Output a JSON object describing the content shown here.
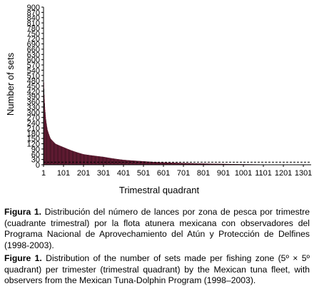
{
  "chart_data": {
    "type": "bar",
    "title": "",
    "xlabel": "Trimestral quadrant",
    "ylabel": "Number of sets",
    "ylim": [
      0,
      900
    ],
    "y_ticks": [
      0,
      30,
      60,
      90,
      120,
      150,
      180,
      210,
      240,
      270,
      300,
      330,
      360,
      390,
      420,
      450,
      480,
      510,
      540,
      570,
      600,
      630,
      660,
      690,
      720,
      750,
      780,
      810,
      840,
      870,
      900
    ],
    "y_tick_labels": [
      "0",
      "30",
      "60",
      "90",
      "120",
      "150",
      "180",
      "210",
      "240",
      "270",
      "300",
      "330",
      "360",
      "390",
      "420",
      "450",
      "480",
      "510",
      "540",
      "570",
      "600",
      "630",
      "660",
      "690",
      "720",
      "750",
      "780",
      "810",
      "840",
      "870",
      "900"
    ],
    "x_ticks": [
      1,
      101,
      201,
      301,
      401,
      501,
      601,
      701,
      801,
      901,
      1001,
      1101,
      1201,
      1301
    ],
    "xlim": [
      1,
      1340
    ],
    "n_quadrants": 1180,
    "bar_color": "#7a1a3a",
    "reference_line": {
      "y": 15,
      "style": "dashed"
    },
    "values_at": [
      {
        "x": 1,
        "y": 530
      },
      {
        "x": 2,
        "y": 470
      },
      {
        "x": 4,
        "y": 400
      },
      {
        "x": 7,
        "y": 330
      },
      {
        "x": 12,
        "y": 260
      },
      {
        "x": 20,
        "y": 200
      },
      {
        "x": 35,
        "y": 150
      },
      {
        "x": 60,
        "y": 120
      },
      {
        "x": 101,
        "y": 100
      },
      {
        "x": 201,
        "y": 60
      },
      {
        "x": 301,
        "y": 45
      },
      {
        "x": 401,
        "y": 28
      },
      {
        "x": 501,
        "y": 20
      },
      {
        "x": 601,
        "y": 13
      },
      {
        "x": 701,
        "y": 10
      },
      {
        "x": 801,
        "y": 7
      },
      {
        "x": 901,
        "y": 5
      },
      {
        "x": 1001,
        "y": 3
      },
      {
        "x": 1101,
        "y": 2
      },
      {
        "x": 1180,
        "y": 1
      }
    ]
  },
  "caption_es": {
    "label": "Figura 1.",
    "text": " Distribución del número de lances por zona de pesca por trimestre (cuadrante trimestral) por la flota atunera mexicana con observadores del Programa Nacional de Aprovechamiento del Atún y Protección de Delfines (1998-2003)."
  },
  "caption_en": {
    "label": "Figure 1.",
    "text": " Distribution of the number of sets made per fishing zone (5º × 5º quadrant) per trimester (trimestral quadrant) by the Mexican tuna fleet, with observers from the Mexican Tuna-Dolphin Program (1998–2003)."
  }
}
